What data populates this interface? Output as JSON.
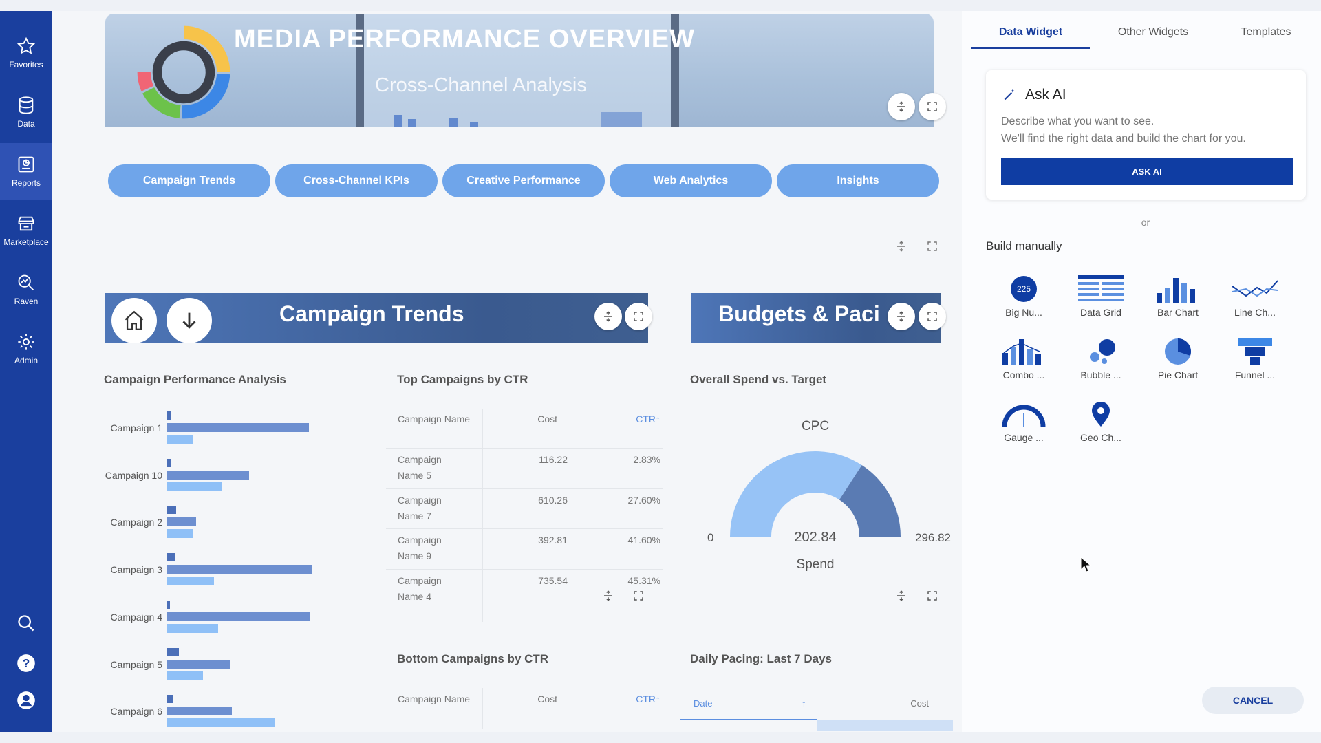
{
  "sidebar": {
    "items": [
      {
        "label": "Favorites",
        "icon": "star-icon"
      },
      {
        "label": "Data",
        "icon": "database-icon"
      },
      {
        "label": "Reports",
        "icon": "reports-icon"
      },
      {
        "label": "Marketplace",
        "icon": "store-icon"
      },
      {
        "label": "Raven",
        "icon": "raven-icon"
      },
      {
        "label": "Admin",
        "icon": "gear-icon"
      }
    ],
    "active": "Reports"
  },
  "banner": {
    "title": "MEDIA PERFORMANCE OVERVIEW",
    "subtitle": "Cross-Channel Analysis"
  },
  "tabs": [
    {
      "label": "Campaign Trends"
    },
    {
      "label": "Cross-Channel KPIs"
    },
    {
      "label": "Creative Performance"
    },
    {
      "label": "Web Analytics"
    },
    {
      "label": "Insights"
    }
  ],
  "sections": {
    "campaign_trends": "Campaign Trends",
    "budgets": "Budgets & Paci"
  },
  "widgets": {
    "perf_analysis": {
      "title": "Campaign Performance Analysis"
    },
    "top_ctr": {
      "title": "Top Campaigns by CTR",
      "columns": [
        "Campaign Name",
        "Cost",
        "CTR"
      ],
      "rows": [
        {
          "name": "Campaign Name 5",
          "cost": "116.22",
          "ctr": "2.83%"
        },
        {
          "name": "Campaign Name 7",
          "cost": "610.26",
          "ctr": "27.60%"
        },
        {
          "name": "Campaign Name 9",
          "cost": "392.81",
          "ctr": "41.60%"
        },
        {
          "name": "Campaign Name 4",
          "cost": "735.54",
          "ctr": "45.31%"
        }
      ]
    },
    "spend_target": {
      "title": "Overall Spend vs. Target",
      "gauge_label": "CPC",
      "value": "202.84",
      "min": "0",
      "max": "296.82",
      "metric": "Spend"
    },
    "bottom_ctr": {
      "title": "Bottom Campaigns by CTR",
      "columns": [
        "Campaign Name",
        "Cost",
        "CTR"
      ]
    },
    "daily_pacing": {
      "title": "Daily Pacing: Last 7 Days",
      "columns": [
        "Date",
        "Cost"
      ]
    }
  },
  "chart_data": [
    {
      "type": "bar",
      "categories": [
        "Campaign 1",
        "Campaign 10",
        "Campaign 2",
        "Campaign 3",
        "Campaign 4",
        "Campaign 5",
        "Campaign 6"
      ],
      "series": [
        {
          "values": [
            5,
            5,
            11,
            10,
            3,
            14,
            7
          ]
        },
        {
          "values": [
            172,
            99,
            35,
            176,
            173,
            77,
            78
          ]
        },
        {
          "values": [
            32,
            67,
            32,
            57,
            62,
            43,
            130
          ]
        }
      ]
    },
    {
      "type": "gauge",
      "value": 202.84,
      "min": 0,
      "max": 296.82
    }
  ],
  "panel": {
    "tabs": [
      "Data Widget",
      "Other Widgets",
      "Templates"
    ],
    "active_tab": "Data Widget",
    "ask_ai": {
      "title": "Ask AI",
      "desc1": "Describe what you want to see.",
      "desc2": "We'll find the right data and build the chart for you.",
      "button": "ASK AI"
    },
    "or": "or",
    "build_manually": "Build manually",
    "widget_types": [
      {
        "label": "Big Nu...",
        "icon": "big-number-icon",
        "badge": "225"
      },
      {
        "label": "Data Grid",
        "icon": "data-grid-icon"
      },
      {
        "label": "Bar Chart",
        "icon": "bar-chart-icon"
      },
      {
        "label": "Line Ch...",
        "icon": "line-chart-icon"
      },
      {
        "label": "Combo ...",
        "icon": "combo-chart-icon"
      },
      {
        "label": "Bubble ...",
        "icon": "bubble-chart-icon"
      },
      {
        "label": "Pie Chart",
        "icon": "pie-chart-icon"
      },
      {
        "label": "Funnel ...",
        "icon": "funnel-chart-icon"
      },
      {
        "label": "Gauge ...",
        "icon": "gauge-chart-icon"
      },
      {
        "label": "Geo Ch...",
        "icon": "geo-chart-icon"
      }
    ],
    "cancel": "CANCEL"
  },
  "colors": {
    "sidebar": "#1a3f9e",
    "accent": "#0f3da3",
    "tab_pill": "#6fa5ea",
    "bar_dark": "#4b6fb8",
    "bar_light": "#8fc0f7",
    "gauge_fill": "#97c3f6",
    "gauge_dark": "#5a7bb3"
  }
}
